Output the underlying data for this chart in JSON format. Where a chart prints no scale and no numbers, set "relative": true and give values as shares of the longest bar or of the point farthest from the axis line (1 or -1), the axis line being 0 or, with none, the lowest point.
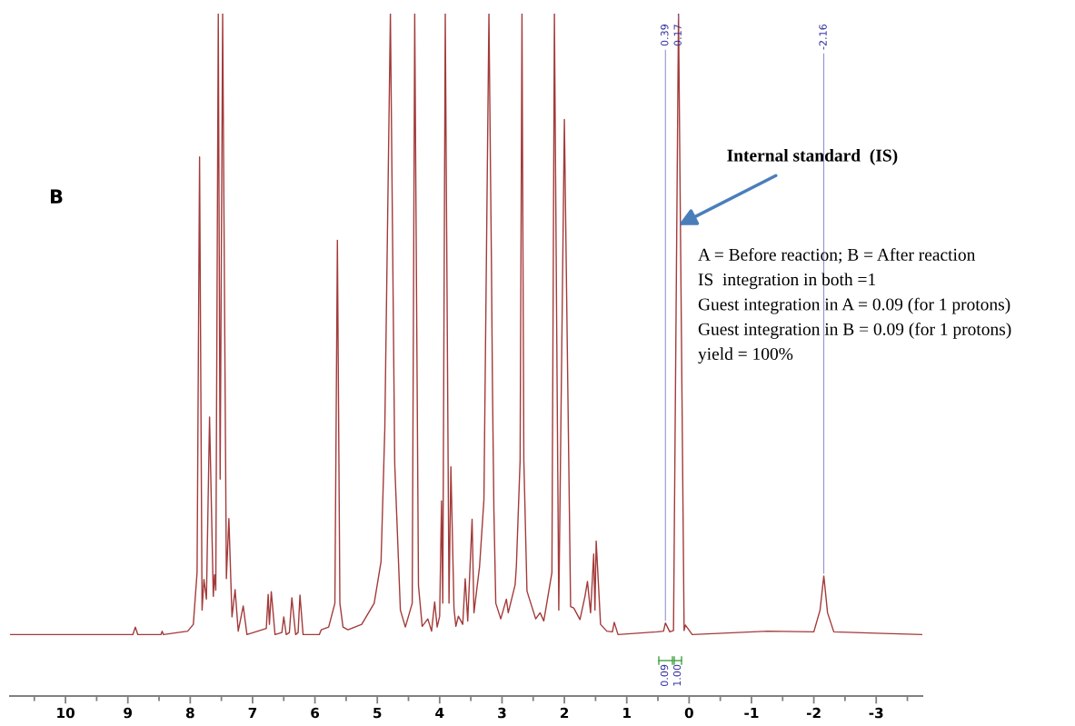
{
  "chart_data": {
    "type": "line",
    "relative": true,
    "xlim": [
      10.89,
      -3.74
    ],
    "xticks": [
      10,
      9,
      8,
      7,
      6,
      5,
      4,
      3,
      2,
      1,
      0,
      -1,
      -2,
      -3,
      {
        "value": 10.5,
        "label": null
      },
      {
        "value": 9.5,
        "label": null
      },
      {
        "value": 8.5,
        "label": null
      },
      {
        "value": 7.5,
        "label": null
      },
      {
        "value": 6.5,
        "label": null
      },
      {
        "value": 5.5,
        "label": null
      },
      {
        "value": 4.5,
        "label": null
      },
      {
        "value": 3.5,
        "label": null
      },
      {
        "value": 2.5,
        "label": null
      },
      {
        "value": 1.5,
        "label": null
      },
      {
        "value": 0.5,
        "label": null
      },
      {
        "value": -0.5,
        "label": null
      },
      {
        "value": -1.5,
        "label": null
      },
      {
        "value": -2.5,
        "label": null
      },
      {
        "value": -3.5,
        "label": null
      }
    ],
    "line_style": "solid",
    "series": [
      {
        "color": "#a33a3a",
        "x": [
          10.89,
          9.5,
          8.92,
          8.88,
          8.84,
          8.47,
          8.45,
          8.43,
          8.04,
          7.95,
          7.89,
          7.85,
          7.81,
          7.78,
          7.74,
          7.69,
          7.63,
          7.61,
          7.59,
          7.55,
          7.52,
          7.48,
          7.42,
          7.38,
          7.33,
          7.28,
          7.23,
          7.15,
          7.09,
          6.78,
          6.75,
          6.73,
          6.7,
          6.64,
          6.53,
          6.5,
          6.46,
          6.41,
          6.37,
          6.31,
          6.27,
          6.24,
          6.19,
          5.93,
          5.9,
          5.78,
          5.68,
          5.64,
          5.6,
          5.55,
          5.47,
          5.25,
          5.05,
          4.94,
          4.88,
          4.79,
          4.72,
          4.63,
          4.55,
          4.44,
          4.4,
          4.34,
          4.28,
          4.19,
          4.13,
          4.08,
          4.04,
          4.0,
          3.97,
          3.95,
          3.91,
          3.85,
          3.82,
          3.77,
          3.74,
          3.7,
          3.63,
          3.59,
          3.55,
          3.48,
          3.45,
          3.36,
          3.29,
          3.21,
          3.17,
          3.155,
          3.15,
          3.13,
          3.1,
          3.02,
          2.93,
          2.9,
          2.79,
          2.77,
          2.71,
          2.68,
          2.65,
          2.6,
          2.57,
          2.46,
          2.39,
          2.33,
          2.2,
          2.16,
          2.09,
          2.0,
          1.9,
          1.85,
          1.75,
          1.67,
          1.63,
          1.58,
          1.53,
          1.51,
          1.49,
          1.42,
          1.32,
          1.23,
          1.2,
          1.14,
          0.52,
          0.41,
          0.38,
          0.31,
          0.25,
          0.17,
          0.08,
          0.06,
          -0.05,
          -1.26,
          -2.0,
          -2.1,
          -2.16,
          -2.22,
          -2.32,
          -3.0,
          -3.74
        ],
        "values": [
          0.09,
          0.09,
          0.09,
          0.101,
          0.09,
          0.09,
          0.095,
          0.09,
          0.095,
          0.105,
          0.181,
          0.79,
          0.126,
          0.171,
          0.142,
          0.409,
          0.146,
          0.178,
          0.155,
          1,
          0.318,
          1,
          0.172,
          0.26,
          0.116,
          0.156,
          0.095,
          0.132,
          0.09,
          0.099,
          0.149,
          0.105,
          0.153,
          0.09,
          0.093,
          0.116,
          0.09,
          0.093,
          0.144,
          0.09,
          0.093,
          0.148,
          0.09,
          0.09,
          0.097,
          0.101,
          0.136,
          0.668,
          0.136,
          0.101,
          0.097,
          0.105,
          0.136,
          0.197,
          0.39,
          1,
          0.339,
          0.126,
          0.101,
          0.136,
          1,
          0.162,
          0.102,
          0.113,
          0.095,
          0.138,
          0.101,
          0.117,
          0.286,
          0.136,
          1,
          0.136,
          0.336,
          0.128,
          0.102,
          0.117,
          0.105,
          0.172,
          0.11,
          0.259,
          0.122,
          0.19,
          0.288,
          1,
          0.636,
          0.472,
          0.427,
          0.272,
          0.136,
          0.113,
          0.142,
          0.122,
          0.163,
          0.19,
          0.345,
          1,
          0.345,
          0.154,
          0.145,
          0.113,
          0.122,
          0.11,
          0.181,
          1,
          0.126,
          0.845,
          0.131,
          0.129,
          0.112,
          0.146,
          0.168,
          0.122,
          0.208,
          0.126,
          0.227,
          0.105,
          0.095,
          0.094,
          0.108,
          0.09,
          0.094,
          0.095,
          0.107,
          0.094,
          0.096,
          1,
          0.096,
          0.104,
          0.09,
          0.095,
          0.094,
          0.126,
          0.176,
          0.122,
          0.094,
          0.092,
          0.09
        ]
      }
    ],
    "annotations": [
      "B",
      {
        "text": "Internal standard  (IS)",
        "x": 0.17,
        "y": 0.69
      },
      "A = Before reaction; B = After reaction",
      "IS  integration in both =1",
      "Guest integration in A = 0.09 (for 1 protons)",
      "Guest integration in B = 0.09 (for 1 protons)",
      "yield = 100%",
      {
        "text": "0.39",
        "x": 0.38,
        "y": 0.107
      },
      {
        "text": "0.17",
        "x": 0.17,
        "y": 1
      },
      {
        "text": "-2.16",
        "x": -2.16,
        "y": 0.176
      },
      "0.09",
      "1.00"
    ]
  }
}
